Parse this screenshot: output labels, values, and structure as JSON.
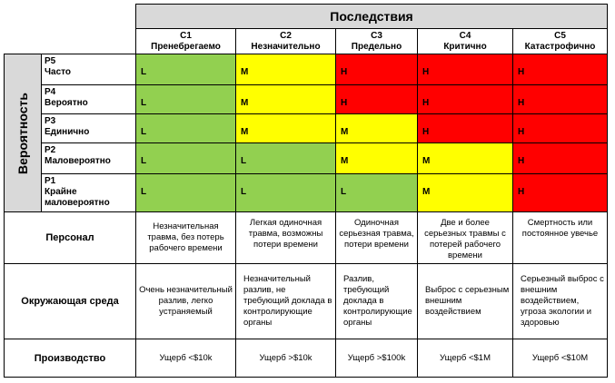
{
  "header": {
    "title": "Последствия"
  },
  "columns": [
    {
      "code": "C1",
      "label": "Пренебрегаемо"
    },
    {
      "code": "C2",
      "label": "Незначительно"
    },
    {
      "code": "C3",
      "label": "Предельно"
    },
    {
      "code": "C4",
      "label": "Критично"
    },
    {
      "code": "C5",
      "label": "Катастрофично"
    }
  ],
  "probability_label": "Вероятность",
  "rows": [
    {
      "code": "P5",
      "label": "Часто",
      "cells": [
        "L",
        "M",
        "H",
        "H",
        "H"
      ]
    },
    {
      "code": "P4",
      "label": "Вероятно",
      "cells": [
        "L",
        "M",
        "H",
        "H",
        "H"
      ]
    },
    {
      "code": "P3",
      "label": "Единично",
      "cells": [
        "L",
        "M",
        "M",
        "H",
        "H"
      ]
    },
    {
      "code": "P2",
      "label": "Маловероятно",
      "cells": [
        "L",
        "L",
        "M",
        "M",
        "H"
      ]
    },
    {
      "code": "P1",
      "label": "Крайне маловероятно",
      "cells": [
        "L",
        "L",
        "L",
        "M",
        "H"
      ]
    }
  ],
  "colors": {
    "L": "#92d050",
    "M": "#ffff00",
    "H": "#ff0000",
    "header_bg": "#d9d9d9"
  },
  "categories": [
    {
      "label": "Персонал",
      "descriptions": [
        "Незначительная травма, без потерь рабочего времени",
        "Легкая одиночная травма, возможны потери времени",
        "Одиночная серьезная травма, потери времени",
        "Две и более серьезных травмы с потерей рабочего времени",
        "Смертность или постоянное увечье"
      ]
    },
    {
      "label": "Окружающая среда",
      "descriptions": [
        "Очень незначительный разлив, легко устраняемый",
        "Незначительный разлив, не требующий доклада в контролирующие органы",
        "Разлив, требующий доклада в контролирующие органы",
        "Выброс с серьезным внешним воздействием",
        "Серьезный выброс с внешним воздействием, угроза экологии и здоровью"
      ]
    },
    {
      "label": "Производство",
      "descriptions": [
        "Ущерб <$10k",
        "Ущерб >$10k",
        "Ущерб >$100k",
        "Ущерб <$1M",
        "Ущерб <$10M"
      ]
    }
  ]
}
